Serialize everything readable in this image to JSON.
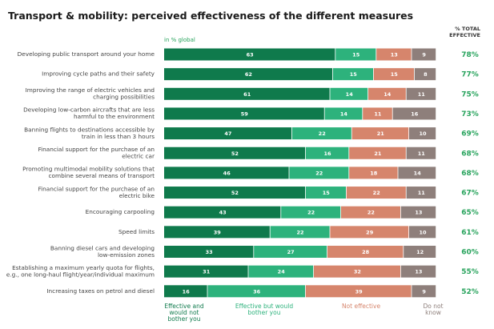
{
  "chart_data": {
    "type": "stacked-bar-horizontal",
    "title": "Transport & mobility: perceived effectiveness of the different measures",
    "subtitle": "in % global",
    "categories": [
      "Developing public transport around your home",
      "Improving cycle paths and their safety",
      "Improving the range of electric vehicles and\ncharging possibilities",
      "Developing low-carbon aircrafts that are less\nharmful to the environment",
      "Banning flights to destinations accessible by\ntrain in less than 3 hours",
      "Financial support for the purchase of an\nelectric car",
      "Promoting multimodal mobility solutions that\ncombine several means of transport",
      "Financial support for the purchase of an\nelectric bike",
      "Encouraging carpooling",
      "Speed limits",
      "Banning diesel cars and developing\nlow-emission zones",
      "Establishing a maximum yearly quota for flights,\ne.g., one long-haul flight/year/individual maximum",
      "Increasing taxes on petrol and diesel"
    ],
    "series": [
      {
        "name": "Effective and\nwould not\nbother you",
        "color": "#0f7a4c",
        "values": [
          63,
          62,
          61,
          59,
          47,
          52,
          46,
          52,
          43,
          39,
          33,
          31,
          16
        ]
      },
      {
        "name": "Effective but would\nbother you",
        "color": "#2db27c",
        "values": [
          15,
          15,
          14,
          14,
          22,
          16,
          22,
          15,
          22,
          22,
          27,
          24,
          36
        ]
      },
      {
        "name": "Not effective",
        "color": "#d6856c",
        "values": [
          13,
          15,
          14,
          11,
          21,
          21,
          18,
          22,
          22,
          29,
          28,
          32,
          39
        ]
      },
      {
        "name": "Do not\nknow",
        "color": "#8e7f7b",
        "values": [
          9,
          8,
          11,
          16,
          10,
          11,
          14,
          11,
          13,
          10,
          12,
          13,
          9
        ]
      }
    ],
    "totals": {
      "title": "% TOTAL\nEFFECTIVE",
      "color": "#27a35c",
      "values": [
        78,
        77,
        75,
        73,
        69,
        68,
        68,
        67,
        65,
        61,
        60,
        55,
        52
      ],
      "value_labels": [
        "78%",
        "77%",
        "75%",
        "73%",
        "69%",
        "68%",
        "68%",
        "67%",
        "65%",
        "61%",
        "60%",
        "55%",
        "52%"
      ]
    },
    "xlim": [
      0,
      100
    ]
  }
}
